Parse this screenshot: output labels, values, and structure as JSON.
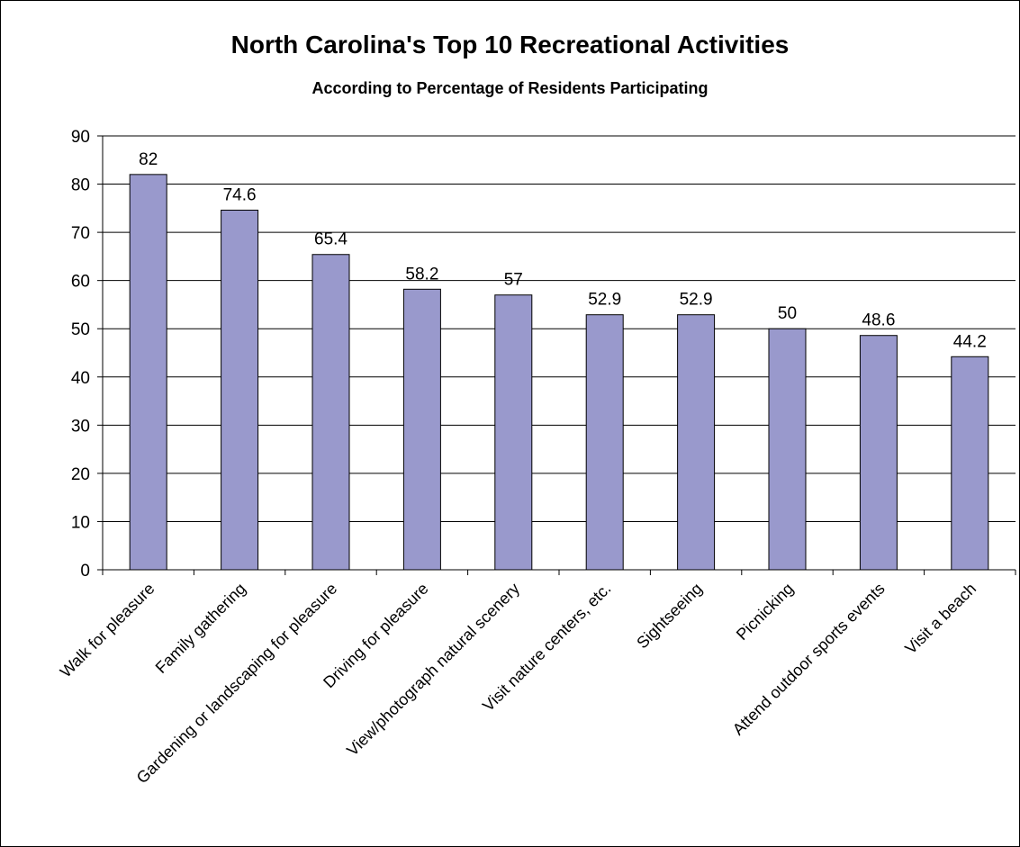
{
  "chart_data": {
    "type": "bar",
    "title": "North Carolina's Top 10 Recreational Activities",
    "subtitle": "According to Percentage of Residents Participating",
    "xlabel": "",
    "ylabel": "",
    "ylim": [
      0,
      90
    ],
    "yticks": [
      0,
      10,
      20,
      30,
      40,
      50,
      60,
      70,
      80,
      90
    ],
    "grid": true,
    "legend": "none",
    "bar_color": "#9999cc",
    "categories": [
      "Walk for pleasure",
      "Family gathering",
      "Gardening or landscaping for pleasure",
      "Driving for pleasure",
      "View/photograph natural scenery",
      "Visit nature centers, etc.",
      "Sightseeing",
      "Picnicking",
      "Attend outdoor sports events",
      "Visit a beach"
    ],
    "values": [
      82,
      74.6,
      65.4,
      58.2,
      57,
      52.9,
      52.9,
      50,
      48.6,
      44.2
    ],
    "data_labels": [
      "82",
      "74.6",
      "65.4",
      "58.2",
      "57",
      "52.9",
      "52.9",
      "50",
      "48.6",
      "44.2"
    ]
  }
}
